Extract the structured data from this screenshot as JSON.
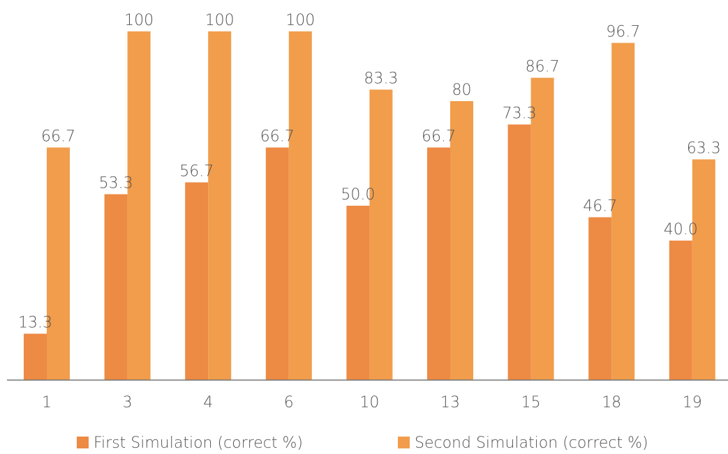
{
  "chart_data": {
    "type": "bar",
    "categories": [
      "1",
      "3",
      "4",
      "6",
      "10",
      "13",
      "15",
      "18",
      "19"
    ],
    "series": [
      {
        "name": "First Simulation (correct %)",
        "values": [
          13.3,
          53.3,
          56.7,
          66.7,
          50.0,
          66.7,
          73.3,
          46.7,
          40.0
        ],
        "labels": [
          "13.3",
          "53.3",
          "56.7",
          "66.7",
          "50.0",
          "66.7",
          "73.3",
          "46.7",
          "40.0"
        ],
        "color": "#ED8A44"
      },
      {
        "name": "Second Simulation (correct %)",
        "values": [
          66.7,
          100,
          100,
          100,
          83.3,
          80,
          86.7,
          96.7,
          63.3
        ],
        "labels": [
          "66.7",
          "100",
          "100",
          "100",
          "83.3",
          "80",
          "86.7",
          "96.7",
          "63.3"
        ],
        "color": "#F19D4C"
      }
    ],
    "ylim": [
      0,
      100
    ],
    "grid": false,
    "legend_position": "bottom"
  }
}
